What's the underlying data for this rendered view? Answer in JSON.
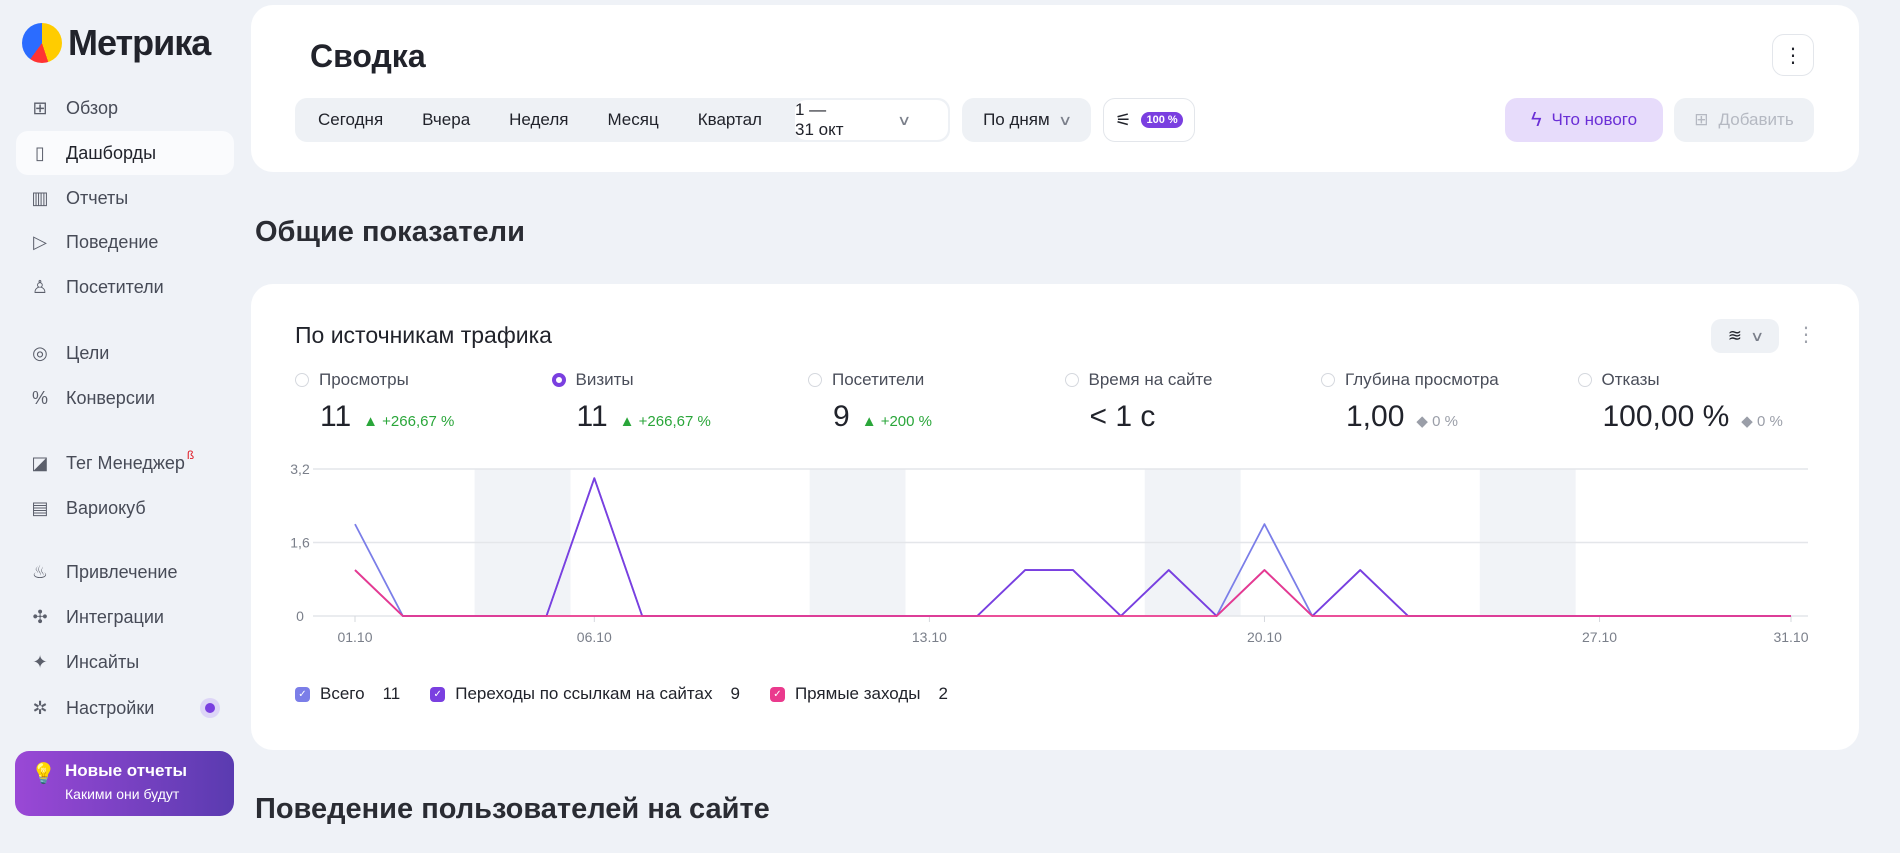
{
  "app": {
    "logo_text": "Метрика"
  },
  "sidebar": {
    "items": [
      {
        "label": "Обзор",
        "icon": "grid-icon"
      },
      {
        "label": "Дашборды",
        "icon": "dashboards-icon",
        "active": true
      },
      {
        "label": "Отчеты",
        "icon": "bar-chart-icon"
      },
      {
        "label": "Поведение",
        "icon": "play-icon"
      },
      {
        "label": "Посетители",
        "icon": "person-icon"
      },
      {
        "label": "Цели",
        "icon": "target-icon"
      },
      {
        "label": "Конверсии",
        "icon": "percent-icon"
      },
      {
        "label": "Тег Менеджер",
        "icon": "tag-manager-icon",
        "badge": "ß"
      },
      {
        "label": "Вариокуб",
        "icon": "variocube-icon"
      },
      {
        "label": "Привлечение",
        "icon": "fire-icon"
      },
      {
        "label": "Интеграции",
        "icon": "puzzle-icon"
      },
      {
        "label": "Инсайты",
        "icon": "sparkle-icon"
      },
      {
        "label": "Настройки",
        "icon": "gear-icon"
      }
    ],
    "promo": {
      "title": "Новые отчеты",
      "subtitle": "Какими они будут"
    }
  },
  "header": {
    "title": "Сводка",
    "periods": [
      "Сегодня",
      "Вчера",
      "Неделя",
      "Месяц",
      "Квартал"
    ],
    "range": "1 — 31 окт",
    "grouping": "По дням",
    "sampling": "100 %",
    "whats_new": "Что нового",
    "add": "Добавить"
  },
  "section1": "Общие показатели",
  "section2": "Поведение пользователей на сайте",
  "widget": {
    "title": "По источникам трафика",
    "metrics": [
      {
        "label": "Просмотры",
        "value": "11",
        "delta": "▲ +266,67 %",
        "selected": false,
        "trend": "up"
      },
      {
        "label": "Визиты",
        "value": "11",
        "delta": "▲ +266,67 %",
        "selected": true,
        "trend": "up"
      },
      {
        "label": "Посетители",
        "value": "9",
        "delta": "▲ +200 %",
        "selected": false,
        "trend": "up"
      },
      {
        "label": "Время на сайте",
        "value": "< 1 с",
        "delta": "",
        "selected": false,
        "trend": "none"
      },
      {
        "label": "Глубина просмотра",
        "value": "1,00",
        "delta": "◆ 0 %",
        "selected": false,
        "trend": "flat"
      },
      {
        "label": "Отказы",
        "value": "100,00 %",
        "delta": "◆ 0 %",
        "selected": false,
        "trend": "flat"
      }
    ]
  },
  "chart_data": {
    "type": "line",
    "ylim": [
      0,
      3.2
    ],
    "yticks": [
      "0",
      "1,6",
      "3,2"
    ],
    "x_days": 31,
    "xticks": [
      {
        "day": 1,
        "label": "01.10"
      },
      {
        "day": 6,
        "label": "06.10"
      },
      {
        "day": 13,
        "label": "13.10"
      },
      {
        "day": 20,
        "label": "20.10"
      },
      {
        "day": 27,
        "label": "27.10"
      },
      {
        "day": 31,
        "label": "31.10"
      }
    ],
    "weekends": [
      [
        4,
        5
      ],
      [
        11,
        12
      ],
      [
        18,
        19
      ],
      [
        25,
        26
      ]
    ],
    "series": [
      {
        "name": "Всего",
        "total": "11",
        "color": "#7b7ee8",
        "values": [
          2,
          0,
          0,
          0,
          0,
          3,
          0,
          0,
          0,
          0,
          0,
          0,
          0,
          0,
          1,
          1,
          0,
          1,
          0,
          2,
          0,
          1,
          0,
          0,
          0,
          0,
          0,
          0,
          0,
          0,
          0
        ]
      },
      {
        "name": "Переходы по ссылкам на сайтах",
        "total": "9",
        "color": "#7a3fe0",
        "values": [
          1,
          0,
          0,
          0,
          0,
          3,
          0,
          0,
          0,
          0,
          0,
          0,
          0,
          0,
          1,
          1,
          0,
          1,
          0,
          1,
          0,
          1,
          0,
          0,
          0,
          0,
          0,
          0,
          0,
          0,
          0
        ]
      },
      {
        "name": "Прямые заходы",
        "total": "2",
        "color": "#ea3a8d",
        "values": [
          1,
          0,
          0,
          0,
          0,
          0,
          0,
          0,
          0,
          0,
          0,
          0,
          0,
          0,
          0,
          0,
          0,
          0,
          0,
          1,
          0,
          0,
          0,
          0,
          0,
          0,
          0,
          0,
          0,
          0,
          0
        ]
      }
    ]
  }
}
